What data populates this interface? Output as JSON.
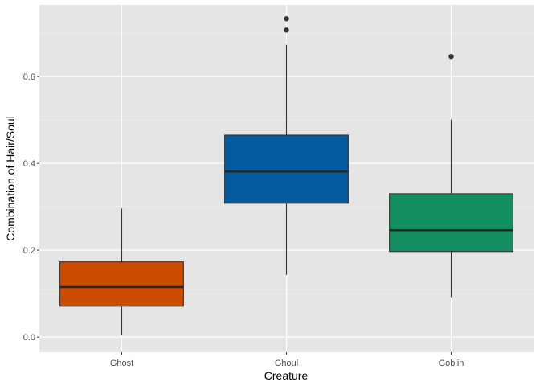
{
  "chart_data": {
    "type": "boxplot",
    "xlabel": "Creature",
    "ylabel": "Combination of Hair/Soul",
    "ylim": [
      -0.035,
      0.765
    ],
    "yticks": [
      0.0,
      0.2,
      0.4,
      0.6
    ],
    "ytick_labels": [
      "0.0",
      "0.2",
      "0.4",
      "0.6"
    ],
    "grid": true,
    "panel_background": "#e5e5e5",
    "categories": [
      "Ghost",
      "Ghoul",
      "Goblin"
    ],
    "boxes": [
      {
        "category": "Ghost",
        "color": "#cc4c02",
        "whisker_low": 0.005,
        "q1": 0.071,
        "median": 0.115,
        "q3": 0.173,
        "whisker_high": 0.296,
        "outliers": []
      },
      {
        "category": "Ghoul",
        "color": "#045a9f",
        "whisker_low": 0.143,
        "q1": 0.308,
        "median": 0.381,
        "q3": 0.465,
        "whisker_high": 0.673,
        "outliers": [
          0.707,
          0.733
        ]
      },
      {
        "category": "Goblin",
        "color": "#148f63",
        "whisker_low": 0.092,
        "q1": 0.197,
        "median": 0.246,
        "q3": 0.33,
        "whisker_high": 0.501,
        "outliers": [
          0.646
        ]
      }
    ]
  }
}
